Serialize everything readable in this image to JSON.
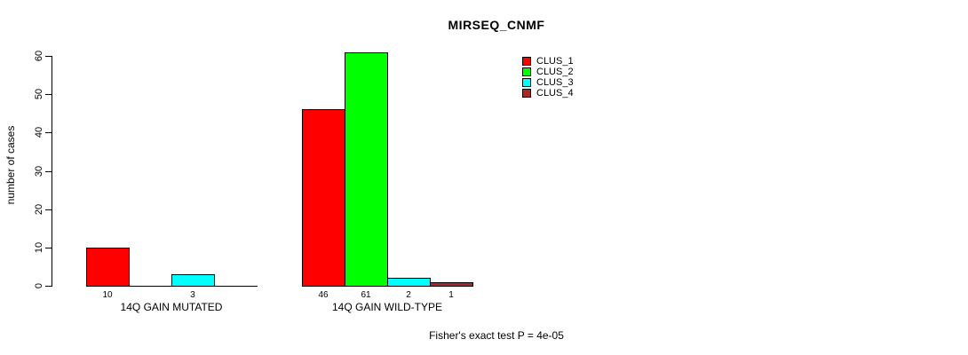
{
  "figure": {
    "background_color": "#ffffff",
    "text_color": "#000000"
  },
  "chart_data": {
    "type": "bar",
    "title": "MIRSEQ_CNMF",
    "ylabel": "number of cases",
    "xlabel": "",
    "categories": [
      "14Q GAIN MUTATED",
      "14Q GAIN WILD-TYPE"
    ],
    "series": [
      {
        "name": "CLUS_1",
        "color": "#ff0000",
        "values": [
          10,
          46
        ]
      },
      {
        "name": "CLUS_2",
        "color": "#00ff00",
        "values": [
          0,
          61
        ]
      },
      {
        "name": "CLUS_3",
        "color": "#00ffff",
        "values": [
          3,
          2
        ]
      },
      {
        "name": "CLUS_4",
        "color": "#a52a2a",
        "values": [
          0,
          1
        ]
      }
    ],
    "value_labels_visible": [
      [
        "10",
        "3"
      ],
      [
        "46",
        "61",
        "2",
        "1"
      ]
    ],
    "yticks": [
      0,
      10,
      20,
      30,
      40,
      50,
      60
    ],
    "ylim": [
      0,
      60
    ],
    "grid": false,
    "bar_border_color": "#000000",
    "legend_position": "top-right",
    "annotation": "Fisher's exact test P = 4e-05"
  },
  "legend": {
    "items": [
      {
        "label": "CLUS_1",
        "color": "#ff0000"
      },
      {
        "label": "CLUS_2",
        "color": "#00ff00"
      },
      {
        "label": "CLUS_3",
        "color": "#00ffff"
      },
      {
        "label": "CLUS_4",
        "color": "#a52a2a"
      }
    ]
  }
}
